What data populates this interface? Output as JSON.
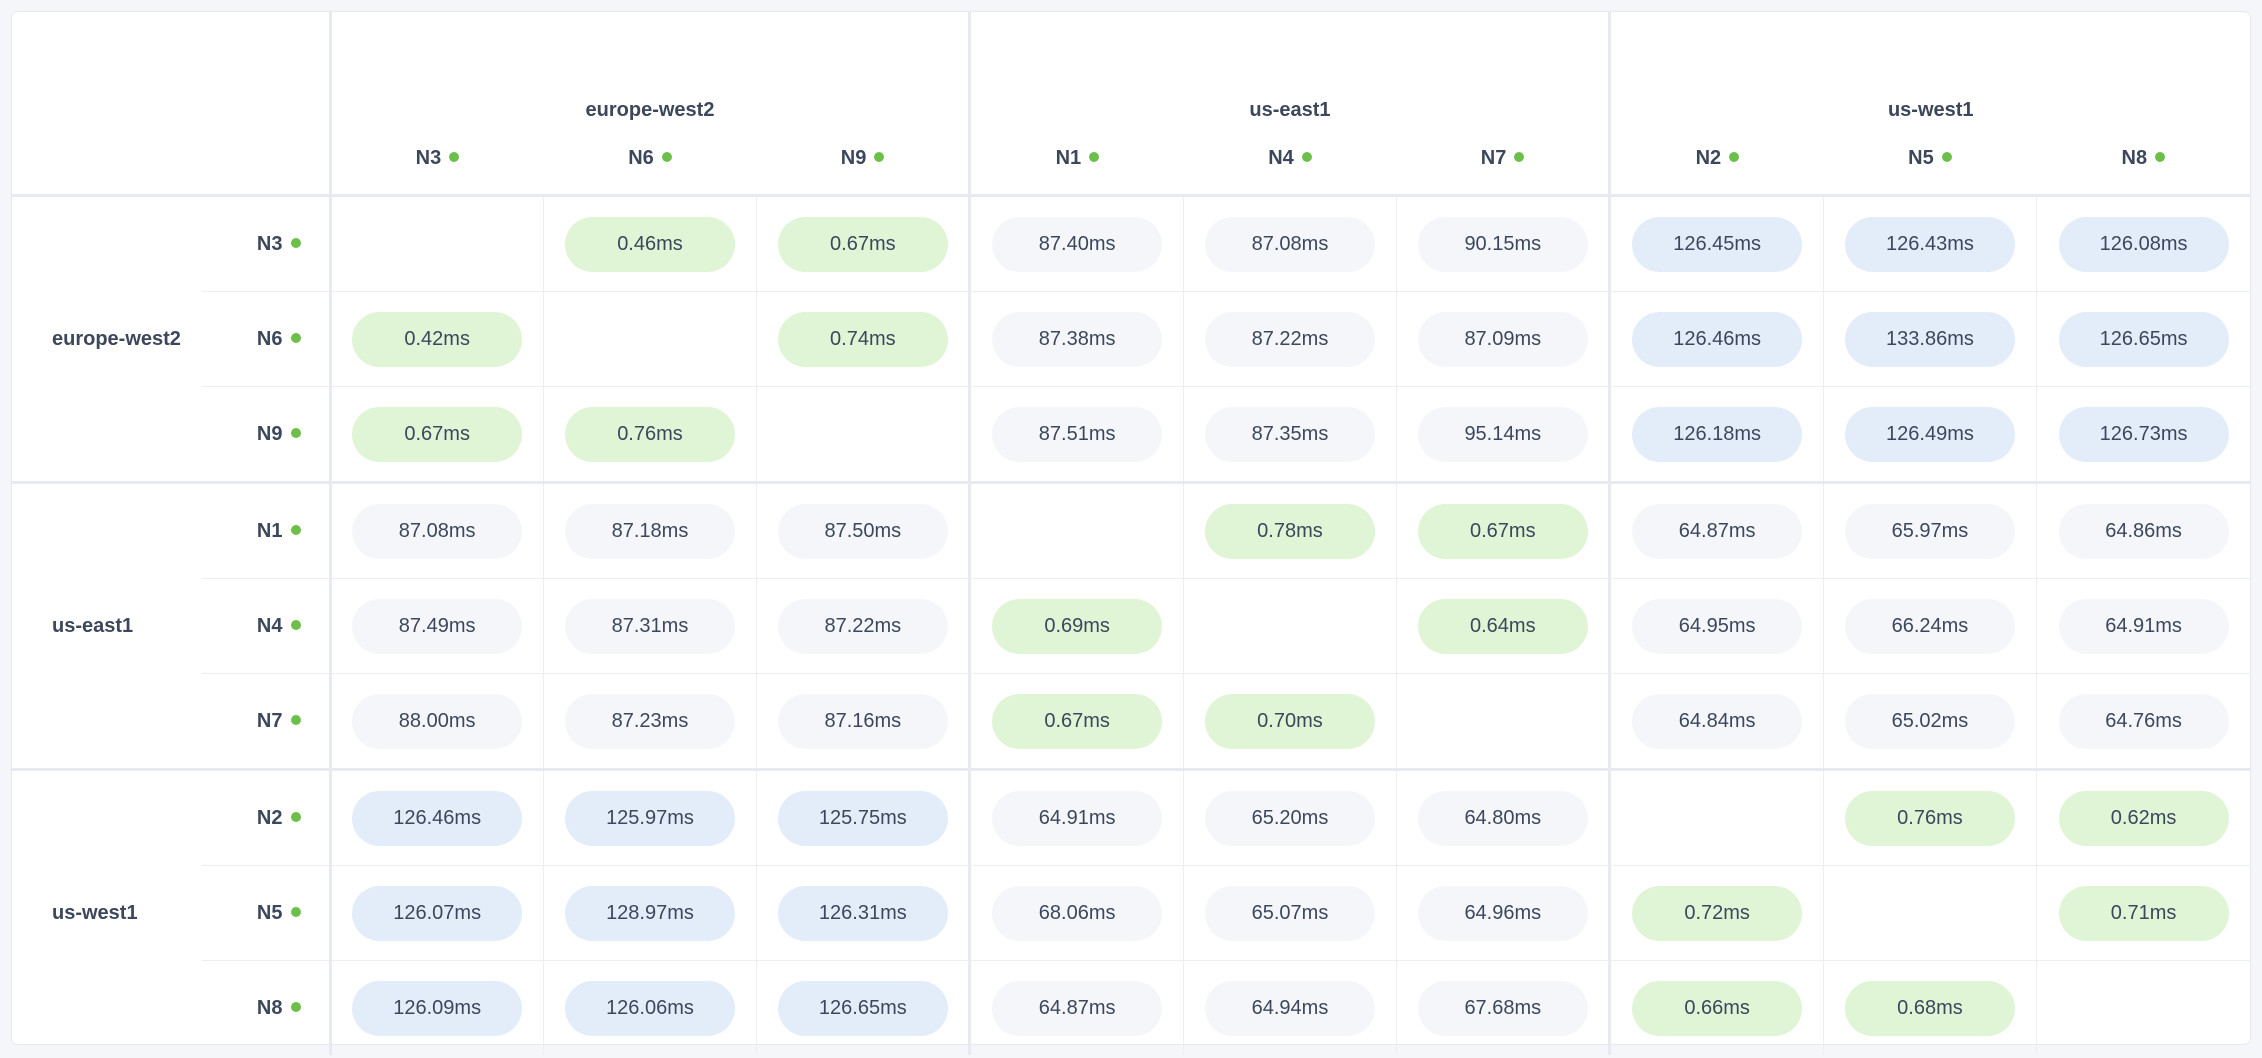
{
  "colors": {
    "green": "#dff5d6",
    "grey": "#f4f6fa",
    "blue": "#e3edf9",
    "status_dot": "#6cc04a"
  },
  "groups": [
    {
      "name": "europe-west2",
      "nodes": [
        "N3",
        "N6",
        "N9"
      ]
    },
    {
      "name": "us-east1",
      "nodes": [
        "N1",
        "N4",
        "N7"
      ]
    },
    {
      "name": "us-west1",
      "nodes": [
        "N2",
        "N5",
        "N8"
      ]
    }
  ],
  "rows": [
    {
      "group": "europe-west2",
      "node": "N3",
      "cells": [
        null,
        "0.46ms",
        "0.67ms",
        "87.40ms",
        "87.08ms",
        "90.15ms",
        "126.45ms",
        "126.43ms",
        "126.08ms"
      ]
    },
    {
      "group": "europe-west2",
      "node": "N6",
      "cells": [
        "0.42ms",
        null,
        "0.74ms",
        "87.38ms",
        "87.22ms",
        "87.09ms",
        "126.46ms",
        "133.86ms",
        "126.65ms"
      ]
    },
    {
      "group": "europe-west2",
      "node": "N9",
      "cells": [
        "0.67ms",
        "0.76ms",
        null,
        "87.51ms",
        "87.35ms",
        "95.14ms",
        "126.18ms",
        "126.49ms",
        "126.73ms"
      ]
    },
    {
      "group": "us-east1",
      "node": "N1",
      "cells": [
        "87.08ms",
        "87.18ms",
        "87.50ms",
        null,
        "0.78ms",
        "0.67ms",
        "64.87ms",
        "65.97ms",
        "64.86ms"
      ]
    },
    {
      "group": "us-east1",
      "node": "N4",
      "cells": [
        "87.49ms",
        "87.31ms",
        "87.22ms",
        "0.69ms",
        null,
        "0.64ms",
        "64.95ms",
        "66.24ms",
        "64.91ms"
      ]
    },
    {
      "group": "us-east1",
      "node": "N7",
      "cells": [
        "88.00ms",
        "87.23ms",
        "87.16ms",
        "0.67ms",
        "0.70ms",
        null,
        "64.84ms",
        "65.02ms",
        "64.76ms"
      ]
    },
    {
      "group": "us-west1",
      "node": "N2",
      "cells": [
        "126.46ms",
        "125.97ms",
        "125.75ms",
        "64.91ms",
        "65.20ms",
        "64.80ms",
        null,
        "0.76ms",
        "0.62ms"
      ]
    },
    {
      "group": "us-west1",
      "node": "N5",
      "cells": [
        "126.07ms",
        "128.97ms",
        "126.31ms",
        "68.06ms",
        "65.07ms",
        "64.96ms",
        "0.72ms",
        null,
        "0.71ms"
      ]
    },
    {
      "group": "us-west1",
      "node": "N8",
      "cells": [
        "126.09ms",
        "126.06ms",
        "126.65ms",
        "64.87ms",
        "64.94ms",
        "67.68ms",
        "0.66ms",
        "0.68ms",
        null
      ]
    }
  ]
}
